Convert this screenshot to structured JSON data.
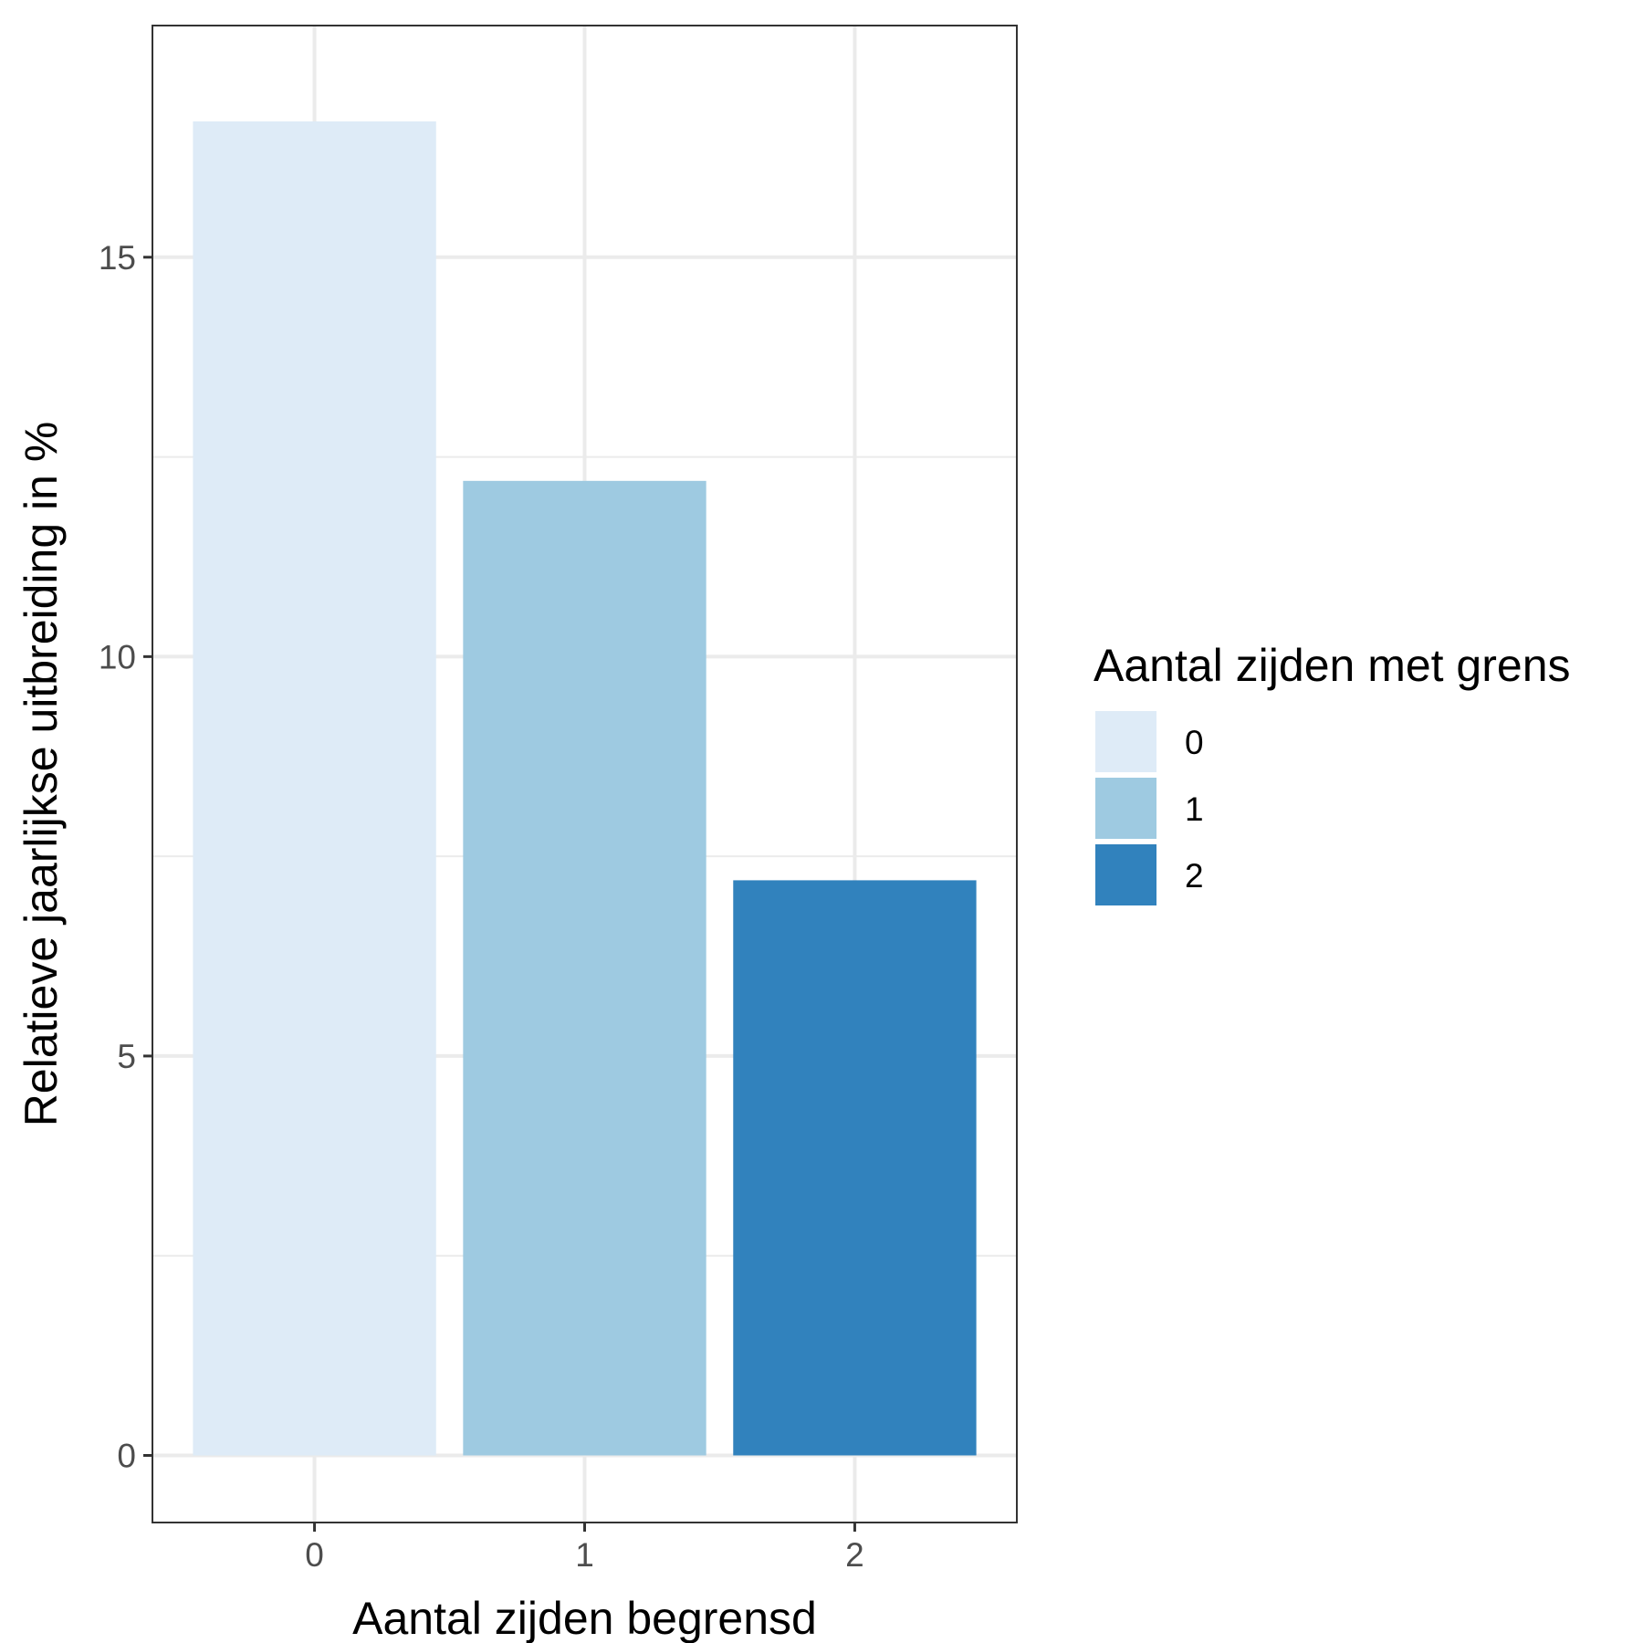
{
  "chart_data": {
    "type": "bar",
    "categories": [
      "0",
      "1",
      "2"
    ],
    "values": [
      16.7,
      12.2,
      7.2
    ],
    "xlabel": "Aantal zijden begrensd",
    "ylabel": "Relatieve jaarlijkse uitbreiding in %",
    "ylim": [
      -0.84,
      17.9
    ],
    "yticks": [
      0,
      5,
      10,
      15
    ],
    "y_minor_gridlines": [
      2.5,
      7.5,
      12.5
    ],
    "grid": true,
    "colors": [
      "#deebf7",
      "#9ecae1",
      "#3182bd"
    ],
    "legend": {
      "title": "Aantal zijden met grens",
      "position": "right",
      "entries": [
        "0",
        "1",
        "2"
      ]
    }
  }
}
